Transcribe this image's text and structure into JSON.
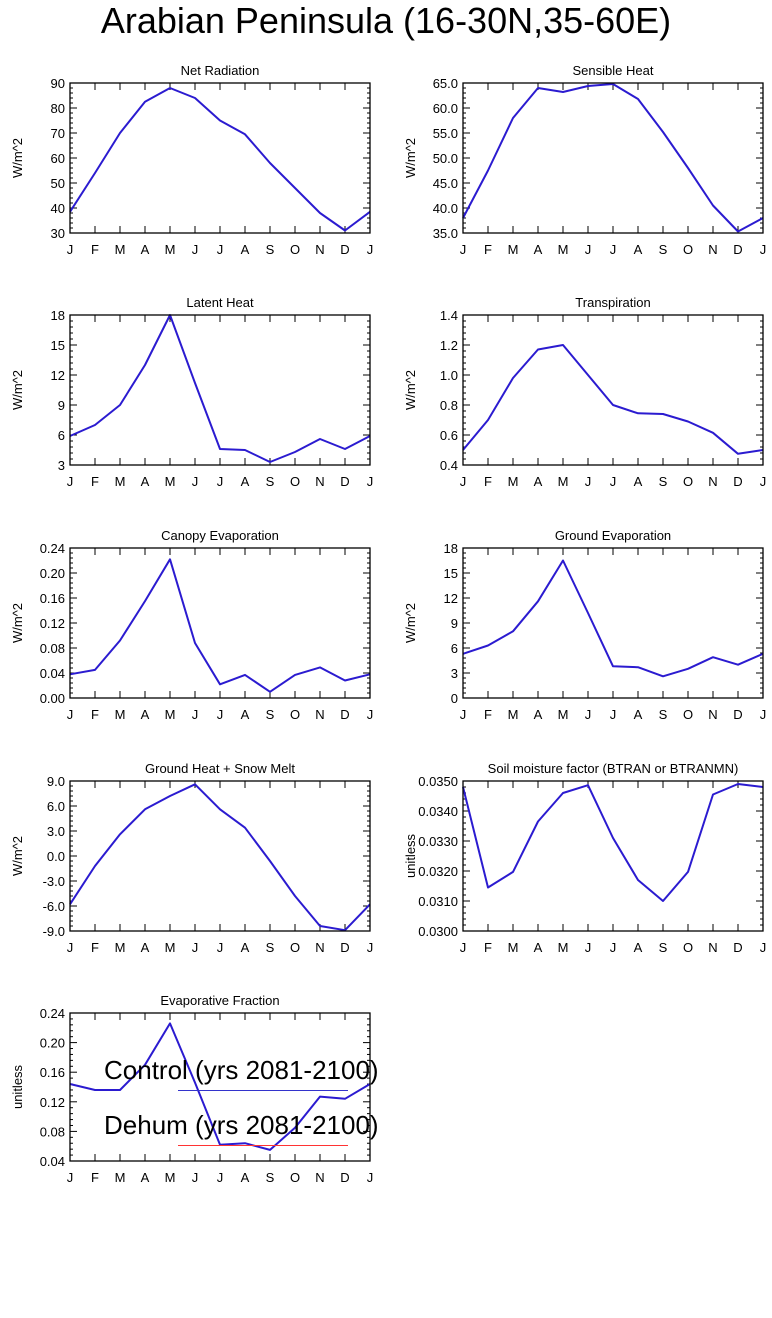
{
  "title": "Arabian Peninsula (16-30N,35-60E)",
  "months": [
    "J",
    "F",
    "M",
    "A",
    "M",
    "J",
    "J",
    "A",
    "S",
    "O",
    "N",
    "D",
    "J"
  ],
  "colors": {
    "control": "#3333cc",
    "dehum": "#ff3333",
    "trace": "#2b1bd0"
  },
  "legend": [
    {
      "label": "Control (yrs 2081-2100)",
      "color": "#3333cc"
    },
    {
      "label": "Dehum (yrs 2081-2100)",
      "color": "#ff3333"
    }
  ],
  "chart_data": [
    {
      "type": "line",
      "title": "Net Radiation",
      "ylabel": "W/m^2",
      "ylim": [
        30,
        90
      ],
      "yticks": [
        30,
        40,
        50,
        60,
        70,
        80,
        90
      ],
      "decimals": 0,
      "values": [
        38.5,
        54,
        70,
        82.5,
        88,
        84,
        75,
        69.5,
        58,
        48,
        38,
        31,
        38.5
      ]
    },
    {
      "type": "line",
      "title": "Sensible Heat",
      "ylabel": "W/m^2",
      "ylim": [
        35,
        65
      ],
      "yticks": [
        35,
        40,
        45,
        50,
        55,
        60,
        65
      ],
      "decimals": 1,
      "values": [
        38,
        47.5,
        58,
        64,
        63.2,
        64.4,
        64.8,
        61.8,
        55.2,
        48,
        40.5,
        35.3,
        38
      ]
    },
    {
      "type": "line",
      "title": "Latent Heat",
      "ylabel": "W/m^2",
      "ylim": [
        3,
        18
      ],
      "yticks": [
        3,
        6,
        9,
        12,
        15,
        18
      ],
      "decimals": 0,
      "values": [
        5.9,
        7,
        9,
        13,
        18,
        11.2,
        4.6,
        4.5,
        3.3,
        4.3,
        5.6,
        4.6,
        5.9
      ]
    },
    {
      "type": "line",
      "title": "Transpiration",
      "ylabel": "W/m^2",
      "ylim": [
        0.4,
        1.4
      ],
      "yticks": [
        0.4,
        0.6,
        0.8,
        1.0,
        1.2,
        1.4
      ],
      "decimals": 1,
      "values": [
        0.5,
        0.7,
        0.98,
        1.17,
        1.2,
        1.0,
        0.8,
        0.745,
        0.74,
        0.69,
        0.615,
        0.475,
        0.5
      ]
    },
    {
      "type": "line",
      "title": "Canopy Evaporation",
      "ylabel": "W/m^2",
      "ylim": [
        0,
        0.24
      ],
      "yticks": [
        0,
        0.04,
        0.08,
        0.12,
        0.16,
        0.2,
        0.24
      ],
      "decimals": 2,
      "values": [
        0.038,
        0.045,
        0.092,
        0.155,
        0.222,
        0.088,
        0.022,
        0.037,
        0.01,
        0.037,
        0.049,
        0.028,
        0.038
      ]
    },
    {
      "type": "line",
      "title": "Ground Evaporation",
      "ylabel": "W/m^2",
      "ylim": [
        0,
        18
      ],
      "yticks": [
        0,
        3,
        6,
        9,
        12,
        15,
        18
      ],
      "decimals": 0,
      "values": [
        5.3,
        6.3,
        8,
        11.6,
        16.5,
        10.2,
        3.8,
        3.7,
        2.6,
        3.5,
        4.9,
        4,
        5.3
      ]
    },
    {
      "type": "line",
      "title": "Ground Heat + Snow Melt",
      "ylabel": "W/m^2",
      "ylim": [
        -9,
        9
      ],
      "yticks": [
        -9,
        -6,
        -3,
        0,
        3,
        6,
        9
      ],
      "decimals": 1,
      "values": [
        -5.8,
        -1.2,
        2.6,
        5.6,
        7.2,
        8.6,
        5.6,
        3.4,
        -0.6,
        -4.8,
        -8.4,
        -8.9,
        -5.8
      ]
    },
    {
      "type": "line",
      "title": "Soil moisture factor (BTRAN or BTRANMN)",
      "ylabel": "unitless",
      "ylim": [
        0.03,
        0.035
      ],
      "yticks": [
        0.03,
        0.031,
        0.032,
        0.033,
        0.034,
        0.035
      ],
      "decimals": 4,
      "values": [
        0.0348,
        0.03145,
        0.03197,
        0.03365,
        0.0346,
        0.03486,
        0.0331,
        0.0317,
        0.031,
        0.03197,
        0.03455,
        0.0349,
        0.0348
      ]
    },
    {
      "type": "line",
      "title": "Evaporative Fraction",
      "ylabel": "unitless",
      "ylim": [
        0.04,
        0.24
      ],
      "yticks": [
        0.04,
        0.08,
        0.12,
        0.16,
        0.2,
        0.24
      ],
      "decimals": 2,
      "values": [
        0.144,
        0.136,
        0.136,
        0.17,
        0.226,
        0.146,
        0.062,
        0.064,
        0.055,
        0.085,
        0.127,
        0.124,
        0.144
      ]
    }
  ]
}
